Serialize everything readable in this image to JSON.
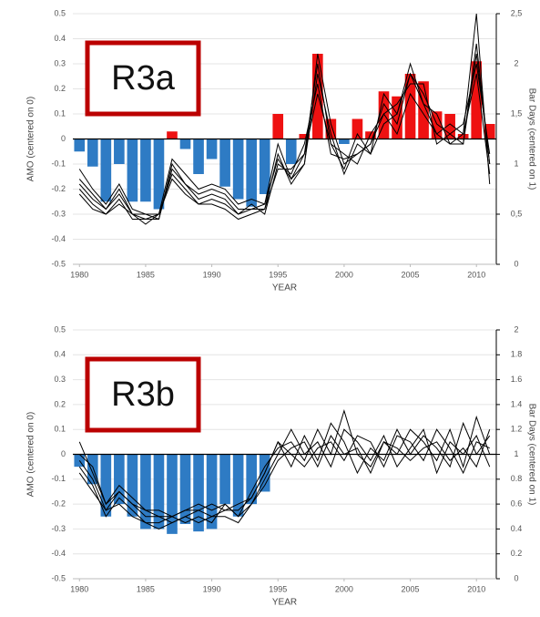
{
  "chart_data": [
    {
      "type": "combo",
      "label": "R3a",
      "y_label": "AMO (centered on 0)",
      "y2_label": "Bar Days (centered on 1)",
      "x_label": "YEAR",
      "x": [
        1980,
        1981,
        1982,
        1983,
        1984,
        1985,
        1986,
        1987,
        1988,
        1989,
        1990,
        1991,
        1992,
        1993,
        1994,
        1995,
        1996,
        1997,
        1998,
        1999,
        2000,
        2001,
        2002,
        2003,
        2004,
        2005,
        2006,
        2007,
        2008,
        2009,
        2010,
        2011
      ],
      "xlim": [
        1979.5,
        2011.5
      ],
      "xticks": [
        1980,
        1985,
        1990,
        1995,
        2000,
        2005,
        2010
      ],
      "ylim": [
        -0.5,
        0.5
      ],
      "yticks": [
        -0.5,
        -0.4,
        -0.3,
        -0.2,
        -0.1,
        0,
        0.1,
        0.2,
        0.3,
        0.4,
        0.5
      ],
      "y2lim": [
        0,
        2.5
      ],
      "y2ticks": [
        0,
        {
          "value": 0.5,
          "label": "0,5"
        },
        1,
        {
          "value": 1.5,
          "label": "1,5"
        },
        2,
        {
          "value": 2.5,
          "label": "2,5"
        }
      ],
      "grid": true,
      "series": [
        {
          "type": "bar",
          "positive_color": "#ee1111",
          "negative_color": "#2e7bc4",
          "values": [
            -0.05,
            -0.11,
            -0.25,
            -0.1,
            -0.25,
            -0.25,
            -0.28,
            0.03,
            -0.04,
            -0.14,
            -0.08,
            -0.19,
            -0.24,
            -0.27,
            -0.22,
            0.1,
            -0.1,
            0.02,
            0.34,
            0.08,
            -0.02,
            0.08,
            0.03,
            0.19,
            0.17,
            0.26,
            0.23,
            0.11,
            0.1,
            0.02,
            0.31,
            0.06
          ]
        },
        {
          "type": "line",
          "axis": "y2",
          "color": "#000000",
          "values": [
            0.95,
            0.75,
            0.6,
            0.8,
            0.55,
            0.5,
            0.5,
            1.05,
            0.9,
            0.75,
            0.8,
            0.75,
            0.6,
            0.65,
            0.6,
            1.2,
            0.85,
            1.0,
            2.1,
            1.4,
            1.0,
            1.1,
            1.2,
            1.6,
            1.4,
            1.9,
            1.7,
            1.4,
            1.3,
            1.2,
            2.2,
            1.0
          ]
        },
        {
          "type": "line",
          "axis": "y2",
          "color": "#000000",
          "values": [
            0.85,
            0.7,
            0.55,
            0.75,
            0.5,
            0.45,
            0.45,
            1.0,
            0.8,
            0.7,
            0.75,
            0.7,
            0.55,
            0.55,
            0.55,
            1.1,
            0.8,
            1.0,
            1.9,
            1.3,
            0.9,
            1.2,
            1.1,
            1.7,
            1.5,
            2.0,
            1.6,
            1.3,
            1.4,
            1.3,
            2.5,
            0.8
          ]
        },
        {
          "type": "line",
          "axis": "y2",
          "color": "#000000",
          "values": [
            0.8,
            0.65,
            0.55,
            0.7,
            0.5,
            0.5,
            0.45,
            0.95,
            0.8,
            0.65,
            0.7,
            0.65,
            0.5,
            0.55,
            0.6,
            1.05,
            0.85,
            1.1,
            2.0,
            1.2,
            1.1,
            1.0,
            1.3,
            1.5,
            1.6,
            1.8,
            1.8,
            1.2,
            1.3,
            1.4,
            2.0,
            1.1
          ]
        },
        {
          "type": "line",
          "axis": "y2",
          "color": "#000000",
          "values": [
            0.75,
            0.6,
            0.5,
            0.65,
            0.45,
            0.45,
            0.5,
            0.9,
            0.75,
            0.6,
            0.65,
            0.6,
            0.5,
            0.6,
            0.5,
            1.0,
            0.9,
            1.2,
            1.8,
            1.1,
            1.05,
            1.1,
            1.2,
            1.5,
            1.3,
            1.7,
            1.5,
            1.3,
            1.2,
            1.3,
            1.9,
            0.9
          ]
        },
        {
          "type": "line",
          "axis": "y2",
          "color": "#000000",
          "values": [
            0.7,
            0.55,
            0.5,
            0.6,
            0.5,
            0.4,
            0.5,
            0.85,
            0.7,
            0.6,
            0.6,
            0.55,
            0.45,
            0.5,
            0.55,
            0.95,
            0.95,
            1.1,
            1.7,
            1.2,
            0.95,
            1.3,
            1.1,
            1.4,
            1.5,
            1.9,
            1.6,
            1.5,
            1.2,
            1.2,
            2.1,
            1.0
          ]
        }
      ]
    },
    {
      "type": "combo",
      "label": "R3b",
      "y_label": "AMO (centered on 0)",
      "y2_label": "Bar Days (centered on 1)",
      "x_label": "YEAR",
      "x": [
        1980,
        1981,
        1982,
        1983,
        1984,
        1985,
        1986,
        1987,
        1988,
        1989,
        1990,
        1991,
        1992,
        1993,
        1994,
        1995,
        1996,
        1997,
        1998,
        1999,
        2000,
        2001,
        2002,
        2003,
        2004,
        2005,
        2006,
        2007,
        2008,
        2009,
        2010,
        2011
      ],
      "xlim": [
        1979.5,
        2011.5
      ],
      "xticks": [
        1980,
        1985,
        1990,
        1995,
        2000,
        2005,
        2010
      ],
      "ylim": [
        -0.5,
        0.5
      ],
      "yticks": [
        -0.5,
        -0.4,
        -0.3,
        -0.2,
        -0.1,
        0,
        0.1,
        0.2,
        0.3,
        0.4,
        0.5
      ],
      "y2lim": [
        0,
        2
      ],
      "y2ticks": [
        0,
        0.2,
        0.4,
        0.6,
        0.8,
        1,
        1.2,
        1.4,
        1.6,
        1.8,
        2
      ],
      "grid": true,
      "series": [
        {
          "type": "bar",
          "positive_color": "#ee1111",
          "negative_color": "#2e7bc4",
          "values": [
            -0.05,
            -0.12,
            -0.25,
            -0.2,
            -0.25,
            -0.3,
            -0.3,
            -0.32,
            -0.28,
            -0.31,
            -0.3,
            -0.2,
            -0.25,
            -0.2,
            -0.15,
            null,
            null,
            null,
            null,
            null,
            null,
            null,
            null,
            null,
            null,
            null,
            null,
            null,
            null,
            null,
            null,
            null
          ]
        },
        {
          "type": "line",
          "axis": "y2",
          "color": "#000000",
          "values": [
            1.1,
            0.85,
            0.6,
            0.75,
            0.65,
            0.55,
            0.55,
            0.5,
            0.55,
            0.6,
            0.55,
            0.6,
            0.5,
            0.7,
            0.9,
            1.05,
            1.1,
            0.95,
            1.2,
            1.0,
            1.35,
            1.0,
            0.9,
            1.1,
            1.0,
            1.2,
            1.1,
            0.95,
            1.2,
            0.9,
            1.3,
            1.0
          ]
        },
        {
          "type": "line",
          "axis": "y2",
          "color": "#000000",
          "values": [
            0.95,
            0.8,
            0.55,
            0.7,
            0.6,
            0.5,
            0.5,
            0.45,
            0.5,
            0.55,
            0.5,
            0.55,
            0.55,
            0.65,
            0.85,
            1.1,
            0.9,
            1.15,
            0.95,
            1.25,
            1.1,
            0.85,
            1.05,
            0.95,
            1.2,
            1.0,
            1.15,
            1.05,
            0.9,
            1.25,
            1.0,
            1.15
          ]
        },
        {
          "type": "line",
          "axis": "y2",
          "color": "#000000",
          "values": [
            0.9,
            0.75,
            0.5,
            0.65,
            0.55,
            0.45,
            0.45,
            0.5,
            0.45,
            0.5,
            0.45,
            0.6,
            0.5,
            0.6,
            0.8,
            1.0,
            1.2,
            1.0,
            1.1,
            0.9,
            1.2,
            1.1,
            0.95,
            1.15,
            0.9,
            1.05,
            1.2,
            0.85,
            1.1,
            1.0,
            1.15,
            0.9
          ]
        },
        {
          "type": "line",
          "axis": "y2",
          "color": "#000000",
          "values": [
            0.85,
            0.7,
            0.55,
            0.6,
            0.5,
            0.45,
            0.4,
            0.45,
            0.5,
            0.45,
            0.5,
            0.5,
            0.45,
            0.6,
            0.75,
            0.95,
            1.05,
            1.1,
            0.9,
            1.15,
            1.0,
            1.05,
            0.85,
            1.1,
            1.05,
            0.95,
            1.05,
            1.1,
            0.95,
            1.05,
            0.9,
            1.2
          ]
        },
        {
          "type": "line",
          "axis": "y2",
          "color": "#000000",
          "values": [
            1.0,
            0.9,
            0.6,
            0.7,
            0.6,
            0.55,
            0.5,
            0.5,
            0.55,
            0.55,
            0.6,
            0.55,
            0.6,
            0.65,
            0.85,
            1.1,
            1.0,
            0.9,
            1.05,
            1.1,
            0.95,
            1.15,
            1.1,
            0.9,
            1.15,
            1.1,
            0.95,
            1.2,
            1.05,
            0.85,
            1.1,
            1.05
          ]
        }
      ]
    }
  ]
}
